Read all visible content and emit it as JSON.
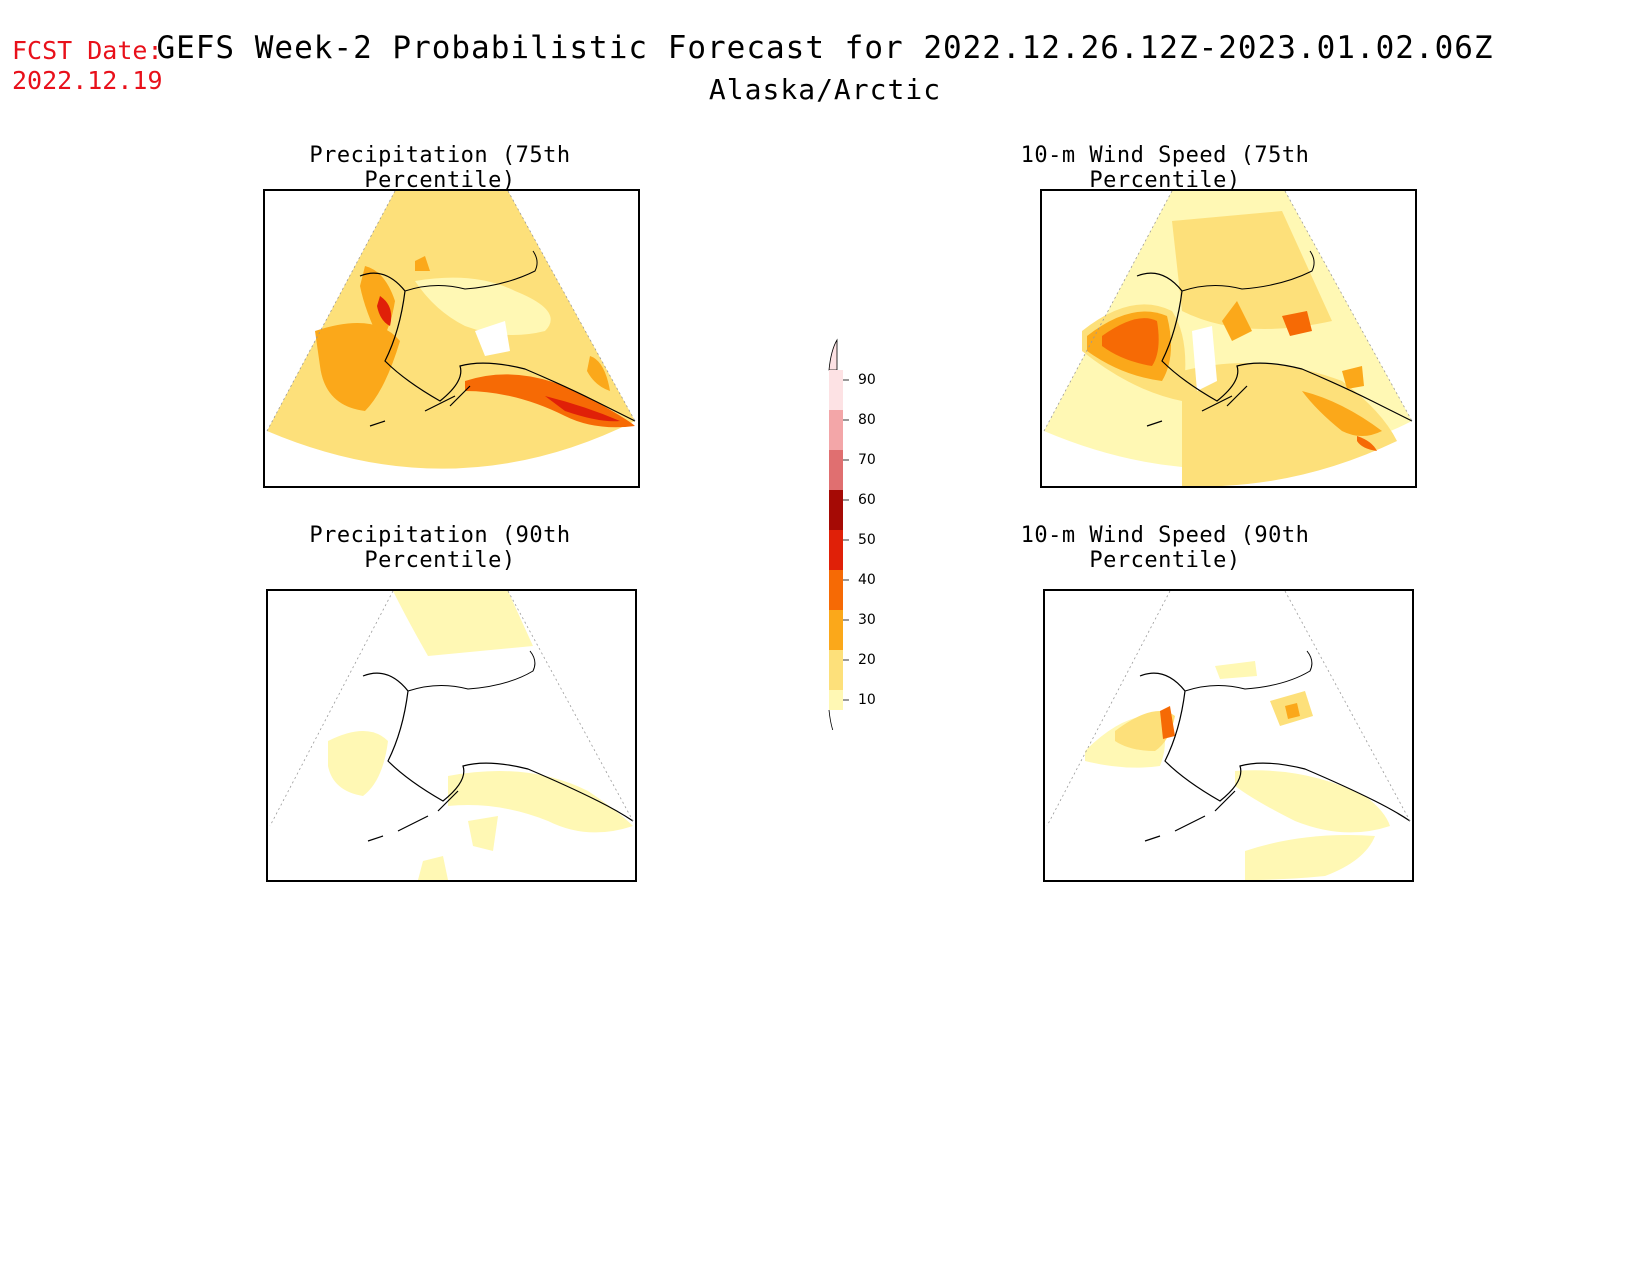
{
  "header": {
    "fcst_label": "FCST Date:",
    "fcst_date": "2022.12.19",
    "title": "GEFS Week-2 Probabilistic Forecast for 2022.12.26.12Z-2023.01.02.06Z",
    "region": "Alaska/Arctic"
  },
  "panels": [
    {
      "title": "Precipitation (75th Percentile)"
    },
    {
      "title": "10-m Wind Speed (75th Percentile)"
    },
    {
      "title": "Precipitation (90th Percentile)"
    },
    {
      "title": "10-m Wind Speed (90th Percentile)"
    }
  ],
  "legend": {
    "labels": [
      "90",
      "80",
      "70",
      "60",
      "50",
      "40",
      "30",
      "20",
      "10"
    ],
    "colors": {
      "c10": "#fff8b4",
      "c20": "#fde07a",
      "c30": "#fba81a",
      "c40": "#f66a05",
      "c50": "#e02008",
      "c60": "#a50a05",
      "c70": "#e06f70",
      "c80": "#f3a6a8",
      "c90": "#fde2e4"
    }
  }
}
